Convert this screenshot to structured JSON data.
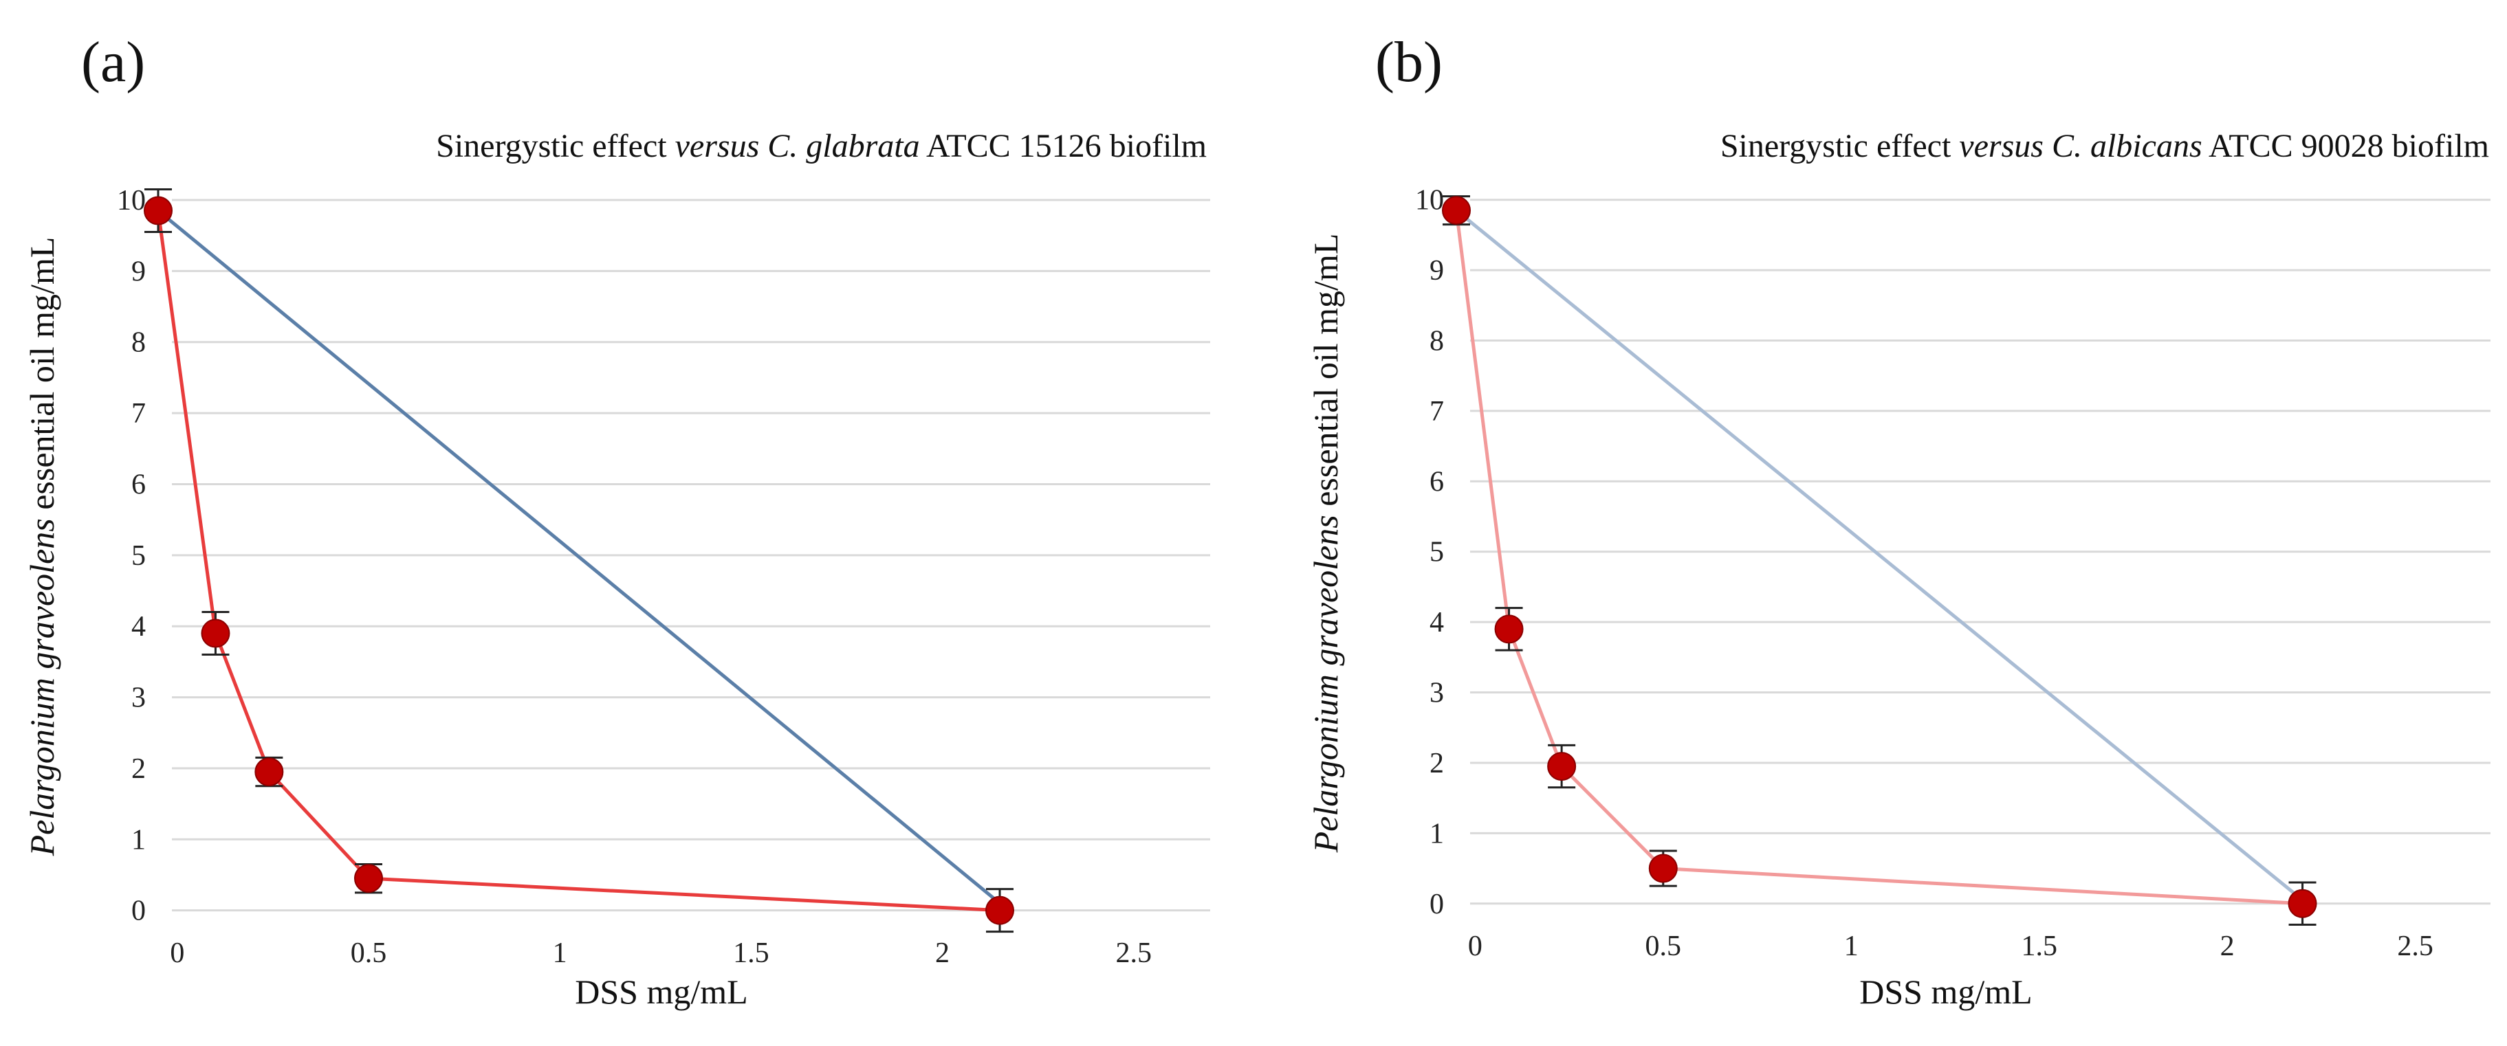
{
  "chart_data": [
    {
      "type": "line",
      "panel_label": "(a)",
      "title_parts": [
        {
          "text": "Sinergystic effect ",
          "italic": false
        },
        {
          "text": "versus C. glabrata",
          "italic": true
        },
        {
          "text": " ATCC 15126  biofilm",
          "italic": false
        }
      ],
      "xlabel": "DSS mg/mL",
      "ylabel_parts": [
        {
          "text": "Pelargonium graveolens",
          "italic": true
        },
        {
          "text": " essential oil mg/mL",
          "italic": false
        }
      ],
      "xlim": [
        -0.05,
        2.7
      ],
      "ylim": [
        -0.1,
        10.3
      ],
      "x_ticks": [
        0,
        0.5,
        1,
        1.5,
        2,
        2.5
      ],
      "x_tick_labels": [
        "0",
        "0.5",
        "1",
        "1.5",
        "2",
        "2.5"
      ],
      "y_ticks": [
        0,
        1,
        2,
        3,
        4,
        5,
        6,
        7,
        8,
        9,
        10
      ],
      "y_tick_labels": [
        "0",
        "1",
        "2",
        "3",
        "4",
        "5",
        "6",
        "7",
        "8",
        "9",
        "10"
      ],
      "grid": "horizontal",
      "series": [
        {
          "role": "additivity-line",
          "color": "#5b7fa8",
          "x": [
            -0.05,
            2.15
          ],
          "y": [
            9.85,
            0.1
          ],
          "markers": false
        },
        {
          "role": "isobologram",
          "color": "#e83c3c",
          "marker_color": "#c00000",
          "x": [
            -0.05,
            0.1,
            0.24,
            0.5,
            2.15
          ],
          "y": [
            9.85,
            3.9,
            1.95,
            0.45,
            0.0
          ],
          "err": [
            0.3,
            0.3,
            0.2,
            0.2,
            0.3
          ],
          "markers": true
        }
      ]
    },
    {
      "type": "line",
      "panel_label": "(b)",
      "title_parts": [
        {
          "text": "Sinergystic effect ",
          "italic": false
        },
        {
          "text": "versus C. albicans",
          "italic": true
        },
        {
          "text": " ATCC 90028  biofilm",
          "italic": false
        }
      ],
      "xlabel": "DSS mg/mL",
      "ylabel_parts": [
        {
          "text": "Pelargonium graveolens",
          "italic": true
        },
        {
          "text": " essential oil mg/mL",
          "italic": false
        }
      ],
      "xlim": [
        -0.05,
        2.7
      ],
      "ylim": [
        -0.1,
        10.3
      ],
      "x_ticks": [
        0,
        0.5,
        1,
        1.5,
        2,
        2.5
      ],
      "x_tick_labels": [
        "0",
        "0.5",
        "1",
        "1.5",
        "2",
        "2.5"
      ],
      "y_ticks": [
        0,
        1,
        2,
        3,
        4,
        5,
        6,
        7,
        8,
        9,
        10
      ],
      "y_tick_labels": [
        "0",
        "1",
        "2",
        "3",
        "4",
        "5",
        "6",
        "7",
        "8",
        "9",
        "10"
      ],
      "grid": "horizontal",
      "series": [
        {
          "role": "additivity-line",
          "color": "#a9bcd4",
          "x": [
            -0.05,
            2.2
          ],
          "y": [
            9.85,
            0.05
          ],
          "markers": false
        },
        {
          "role": "isobologram",
          "color": "#f29a9a",
          "marker_color": "#c00000",
          "x": [
            -0.05,
            0.09,
            0.23,
            0.5,
            2.2
          ],
          "y": [
            9.85,
            3.9,
            1.95,
            0.5,
            0.0
          ],
          "err": [
            0.2,
            0.3,
            0.3,
            0.25,
            0.3
          ],
          "markers": true
        }
      ]
    }
  ]
}
